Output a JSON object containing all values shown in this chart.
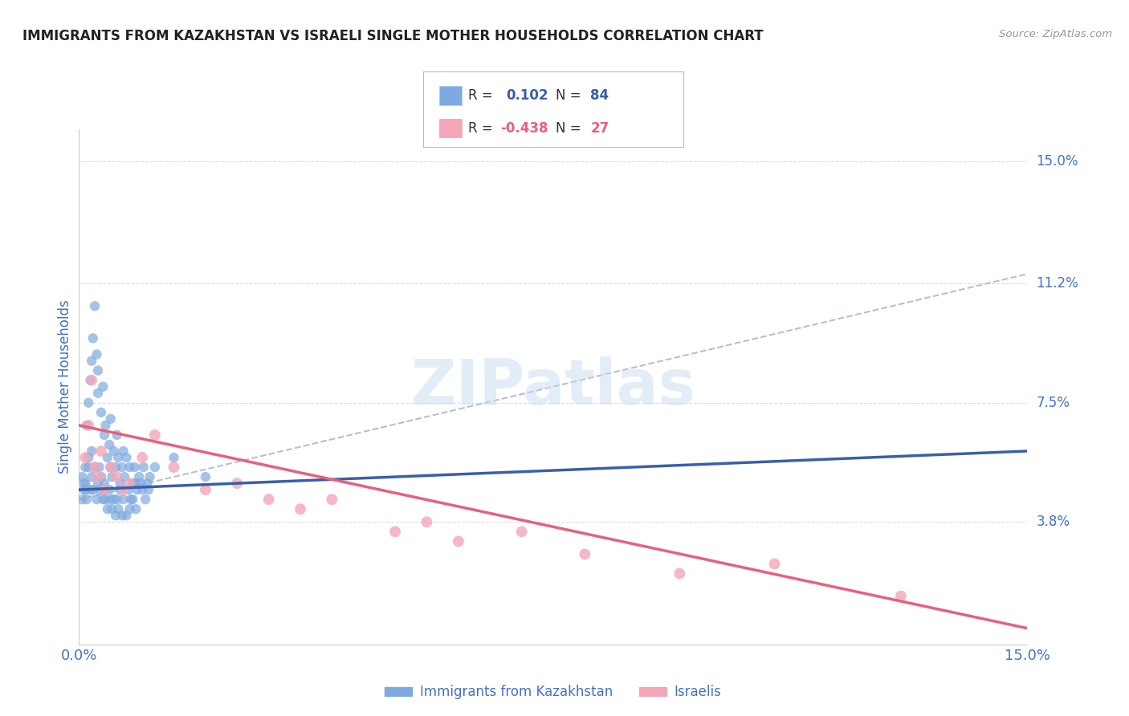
{
  "title": "IMMIGRANTS FROM KAZAKHSTAN VS ISRAELI SINGLE MOTHER HOUSEHOLDS CORRELATION CHART",
  "source": "Source: ZipAtlas.com",
  "ylabel": "Single Mother Households",
  "legend_blue_label": "Immigrants from Kazakhstan",
  "legend_pink_label": "Israelis",
  "watermark": "ZIPatlas",
  "blue_color": "#7faadf",
  "pink_color": "#f4a6b8",
  "blue_line_color": "#3a5fa8",
  "pink_line_color": "#e8607a",
  "gray_dash_color": "#b0b8c8",
  "label_color": "#4472c4",
  "background_color": "#ffffff",
  "blue_scatter": [
    [
      0.05,
      5.2
    ],
    [
      0.08,
      5.0
    ],
    [
      0.1,
      5.5
    ],
    [
      0.1,
      4.8
    ],
    [
      0.12,
      6.8
    ],
    [
      0.15,
      5.8
    ],
    [
      0.15,
      7.5
    ],
    [
      0.18,
      8.2
    ],
    [
      0.2,
      8.8
    ],
    [
      0.2,
      6.0
    ],
    [
      0.22,
      9.5
    ],
    [
      0.25,
      10.5
    ],
    [
      0.28,
      9.0
    ],
    [
      0.3,
      8.5
    ],
    [
      0.3,
      7.8
    ],
    [
      0.32,
      5.5
    ],
    [
      0.35,
      7.2
    ],
    [
      0.38,
      8.0
    ],
    [
      0.4,
      6.5
    ],
    [
      0.4,
      5.0
    ],
    [
      0.42,
      6.8
    ],
    [
      0.45,
      5.8
    ],
    [
      0.48,
      6.2
    ],
    [
      0.5,
      5.5
    ],
    [
      0.5,
      7.0
    ],
    [
      0.52,
      5.2
    ],
    [
      0.55,
      6.0
    ],
    [
      0.58,
      5.5
    ],
    [
      0.6,
      6.5
    ],
    [
      0.62,
      5.8
    ],
    [
      0.65,
      5.0
    ],
    [
      0.68,
      5.5
    ],
    [
      0.7,
      6.0
    ],
    [
      0.72,
      5.2
    ],
    [
      0.75,
      5.8
    ],
    [
      0.78,
      4.8
    ],
    [
      0.8,
      5.5
    ],
    [
      0.82,
      4.5
    ],
    [
      0.85,
      5.0
    ],
    [
      0.88,
      5.5
    ],
    [
      0.9,
      5.0
    ],
    [
      0.92,
      4.8
    ],
    [
      0.95,
      5.2
    ],
    [
      0.98,
      5.0
    ],
    [
      1.0,
      4.8
    ],
    [
      1.02,
      5.5
    ],
    [
      1.05,
      4.5
    ],
    [
      1.08,
      5.0
    ],
    [
      1.1,
      4.8
    ],
    [
      1.12,
      5.2
    ],
    [
      0.05,
      4.5
    ],
    [
      0.08,
      4.8
    ],
    [
      0.1,
      5.0
    ],
    [
      0.12,
      4.5
    ],
    [
      0.15,
      5.5
    ],
    [
      0.18,
      4.8
    ],
    [
      0.2,
      5.2
    ],
    [
      0.22,
      4.8
    ],
    [
      0.25,
      5.5
    ],
    [
      0.28,
      4.5
    ],
    [
      0.3,
      5.0
    ],
    [
      0.32,
      4.8
    ],
    [
      0.35,
      5.2
    ],
    [
      0.38,
      4.5
    ],
    [
      0.4,
      4.8
    ],
    [
      0.42,
      4.5
    ],
    [
      0.45,
      4.2
    ],
    [
      0.48,
      4.8
    ],
    [
      0.5,
      4.5
    ],
    [
      0.52,
      4.2
    ],
    [
      0.55,
      4.5
    ],
    [
      0.58,
      4.0
    ],
    [
      0.6,
      4.5
    ],
    [
      0.62,
      4.2
    ],
    [
      0.65,
      4.8
    ],
    [
      0.68,
      4.0
    ],
    [
      0.7,
      4.5
    ],
    [
      0.75,
      4.0
    ],
    [
      0.8,
      4.2
    ],
    [
      0.85,
      4.5
    ],
    [
      0.9,
      4.2
    ],
    [
      1.2,
      5.5
    ],
    [
      1.5,
      5.8
    ],
    [
      2.0,
      5.2
    ]
  ],
  "pink_scatter": [
    [
      0.1,
      5.8
    ],
    [
      0.15,
      6.8
    ],
    [
      0.2,
      8.2
    ],
    [
      0.25,
      5.5
    ],
    [
      0.3,
      5.2
    ],
    [
      0.35,
      6.0
    ],
    [
      0.4,
      4.8
    ],
    [
      0.5,
      5.5
    ],
    [
      0.6,
      5.2
    ],
    [
      0.7,
      4.8
    ],
    [
      0.8,
      5.0
    ],
    [
      1.0,
      5.8
    ],
    [
      1.2,
      6.5
    ],
    [
      1.5,
      5.5
    ],
    [
      2.0,
      4.8
    ],
    [
      2.5,
      5.0
    ],
    [
      3.0,
      4.5
    ],
    [
      3.5,
      4.2
    ],
    [
      4.0,
      4.5
    ],
    [
      5.0,
      3.5
    ],
    [
      5.5,
      3.8
    ],
    [
      6.0,
      3.2
    ],
    [
      7.0,
      3.5
    ],
    [
      8.0,
      2.8
    ],
    [
      9.5,
      2.2
    ],
    [
      11.0,
      2.5
    ],
    [
      13.0,
      1.5
    ]
  ],
  "blue_trend_x": [
    0.0,
    15.0
  ],
  "blue_trend_y": [
    4.8,
    6.0
  ],
  "pink_trend_x": [
    0.0,
    15.0
  ],
  "pink_trend_y": [
    6.8,
    0.5
  ],
  "gray_trend_x": [
    0.0,
    15.0
  ],
  "gray_trend_y": [
    4.5,
    11.5
  ],
  "xlim": [
    0,
    15
  ],
  "ylim": [
    0,
    16
  ],
  "yticks_right": [
    0.0,
    3.8,
    7.5,
    11.2,
    15.0
  ],
  "yticklabels_right": [
    "",
    "3.8%",
    "7.5%",
    "11.2%",
    "15.0%"
  ],
  "xticks": [
    0.0,
    15.0
  ],
  "xticklabels": [
    "0.0%",
    "15.0%"
  ]
}
